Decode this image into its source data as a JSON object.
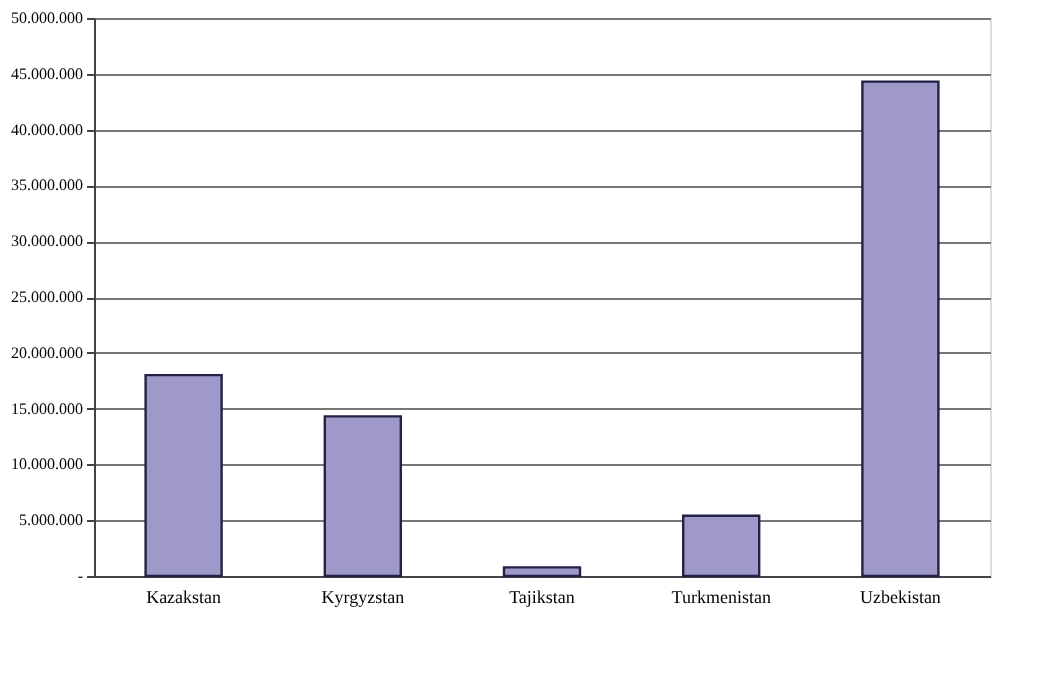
{
  "chart_data": {
    "type": "bar",
    "categories": [
      "Kazakstan",
      "Kyrgyzstan",
      "Tajikstan",
      "Turkmenistan",
      "Uzbekistan"
    ],
    "values": [
      18000000,
      14300000,
      770000,
      5400000,
      44300000
    ],
    "color": "#9f99c9",
    "ylim": [
      0,
      50000000
    ],
    "yticks": [
      {
        "value": 0,
        "label": "-"
      },
      {
        "value": 5000000,
        "label": "5.000.000"
      },
      {
        "value": 10000000,
        "label": "10.000.000"
      },
      {
        "value": 15000000,
        "label": "15.000.000"
      },
      {
        "value": 20000000,
        "label": "20.000.000"
      },
      {
        "value": 25000000,
        "label": "25.000.000"
      },
      {
        "value": 30000000,
        "label": "30.000.000"
      },
      {
        "value": 35000000,
        "label": "35.000.000"
      },
      {
        "value": 40000000,
        "label": "40.000.000"
      },
      {
        "value": 45000000,
        "label": "45.000.000"
      },
      {
        "value": 50000000,
        "label": "50.000.000"
      }
    ],
    "grid": "y"
  }
}
